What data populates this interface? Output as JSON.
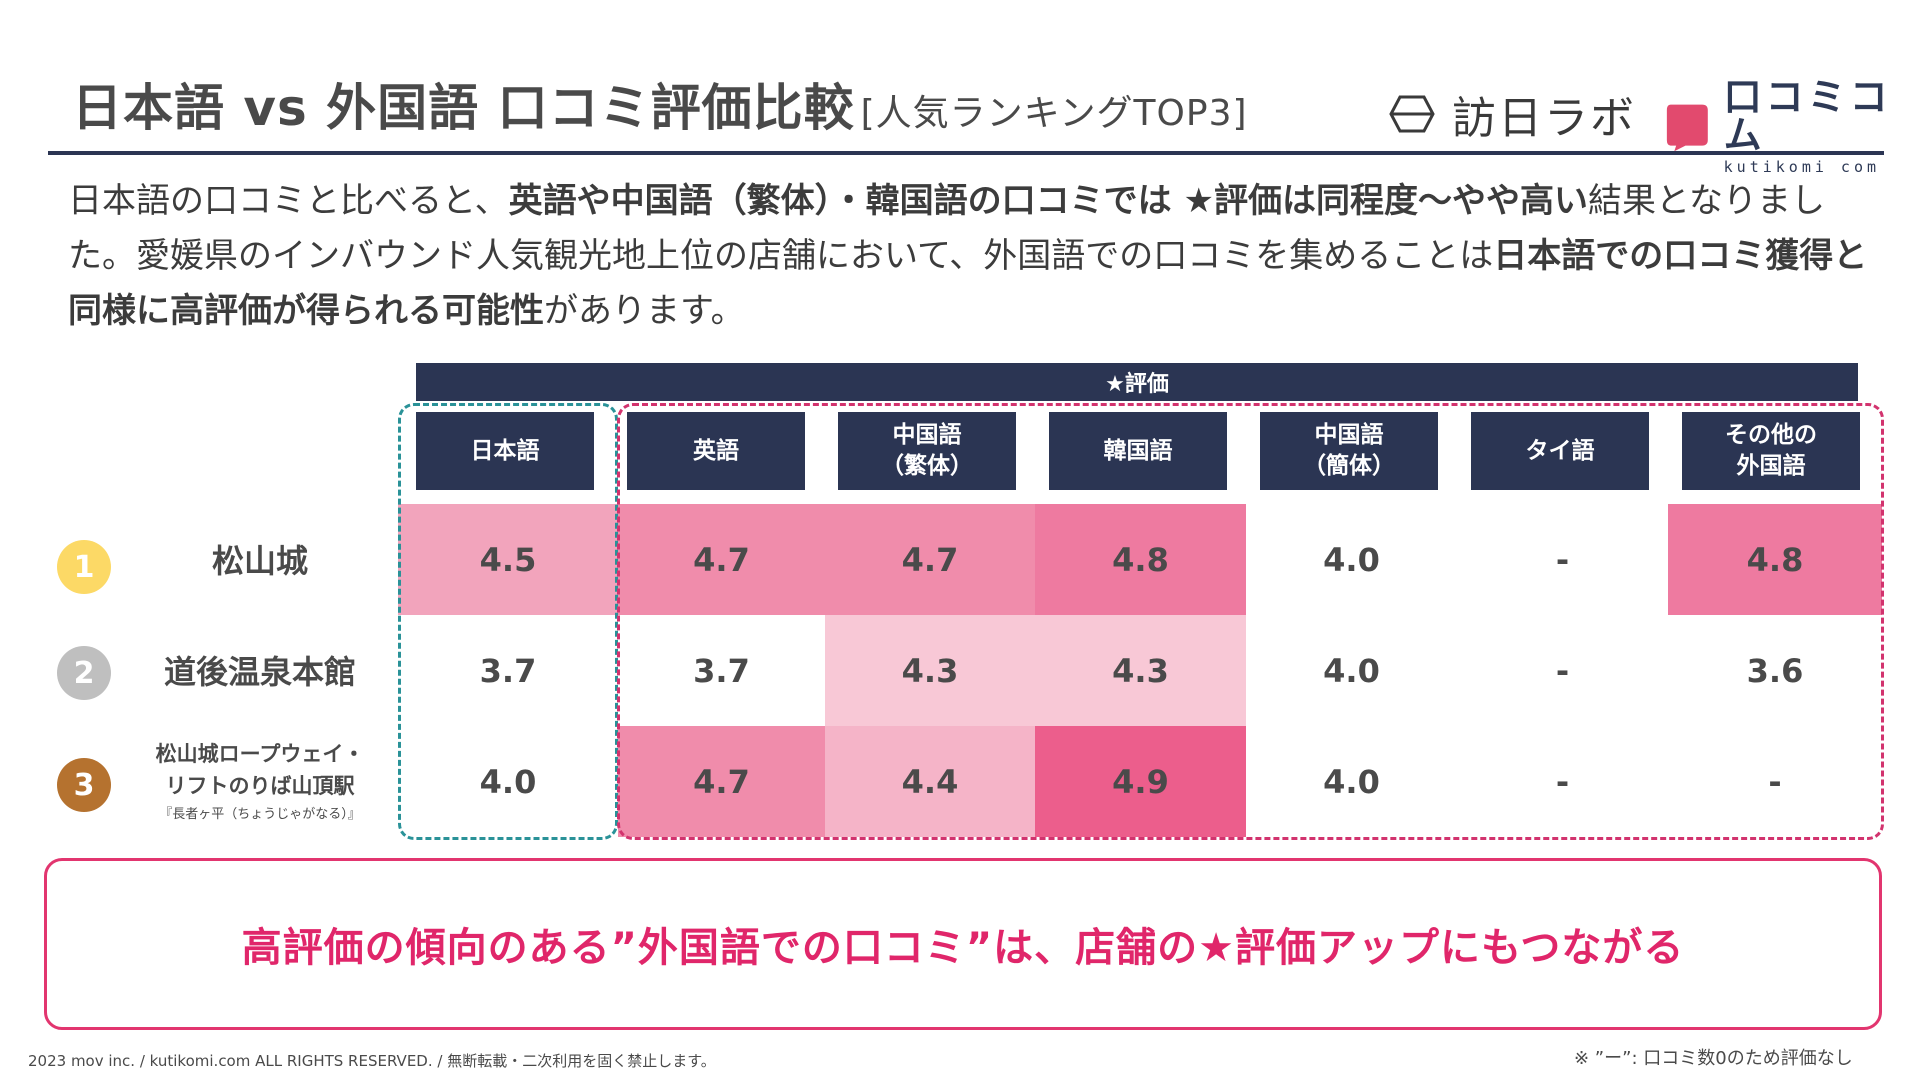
{
  "header": {
    "title": "日本語 vs 外国語 口コミ評価比較",
    "title_sub": "[人気ランキングTOP3]",
    "logo_houjin": "訪日ラボ",
    "logo_kutikomi": "口コミコム",
    "logo_kutikomi_sub": "kutikomi com"
  },
  "intro": {
    "p1": "日本語の口コミと比べると、",
    "b1": "英語や中国語（繁体）・韓国語の口コミでは ★評価は同程度〜やや高い",
    "p2": "結果となりました。愛媛県のインバウンド人気観光地上位の店舗において、外国語での口コミを集めることは",
    "b2": "日本語での口コミ獲得と同様に高評価が得られる可能性",
    "p3": "があります。"
  },
  "table": {
    "group_label": "★評価",
    "columns": [
      "日本語",
      "英語",
      "中国語\n（繁体）",
      "韓国語",
      "中国語\n（簡体）",
      "タイ語",
      "その他の\n外国語"
    ],
    "rows": [
      {
        "rank": "1",
        "name": "松山城",
        "note": "",
        "values": [
          "4.5",
          "4.7",
          "4.7",
          "4.8",
          "4.0",
          "-",
          "4.8"
        ],
        "shades": [
          "#f2a4bc",
          "#f08cab",
          "#f08cab",
          "#ee7aa0",
          "#ffffff",
          "#ffffff",
          "#ee7aa0"
        ]
      },
      {
        "rank": "2",
        "name": "道後温泉本館",
        "note": "",
        "values": [
          "3.7",
          "3.7",
          "4.3",
          "4.3",
          "4.0",
          "-",
          "3.6"
        ],
        "shades": [
          "#ffffff",
          "#ffffff",
          "#f8c8d6",
          "#f8c8d6",
          "#ffffff",
          "#ffffff",
          "#ffffff"
        ]
      },
      {
        "rank": "3",
        "name": "松山城ロープウェイ・\nリフトのりば山頂駅",
        "note": "『長者ヶ平（ちょうじゃがなる）』",
        "values": [
          "4.0",
          "4.7",
          "4.4",
          "4.9",
          "4.0",
          "-",
          "-"
        ],
        "shades": [
          "#ffffff",
          "#f08cab",
          "#f5b4c8",
          "#ec5e8c",
          "#ffffff",
          "#ffffff",
          "#ffffff"
        ]
      }
    ]
  },
  "colors": {
    "navy": "#2b3553",
    "rank_1": "#fcd966",
    "rank_2": "#bfbfbf",
    "rank_3": "#b5722f",
    "logo_red": "#e24a6e",
    "accent_pink": "#e0266a"
  },
  "callout": "高評価の傾向のある”外国語での口コミ”は、店舗の★評価アップにもつながる",
  "footer": {
    "copyright": "2023 mov inc. / kutikomi.com ALL RIGHTS RESERVED. / 無断転載・二次利用を固く禁止します。",
    "note": "※ ”ー”: 口コミ数0のため評価なし"
  }
}
